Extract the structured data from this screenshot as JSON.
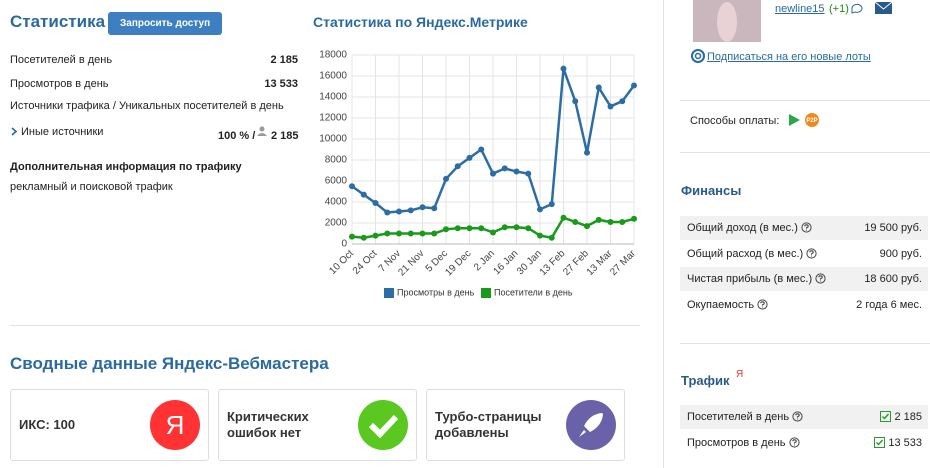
{
  "stats": {
    "title": "Статистика",
    "button": "Запросить доступ",
    "rows": [
      {
        "label": "Посетителей в день",
        "value": "2 185"
      },
      {
        "label": "Просмотров в день",
        "value": "13 533"
      }
    ],
    "sources_header": "Источники трафика / Уникальных посетителей в день",
    "source": {
      "label": "Иные источники",
      "percent": "100 % /",
      "value": "2 185"
    },
    "extra_title": "Дополнительная информация по трафику",
    "extra_text": "рекламный и поисковой трафик"
  },
  "chart_data": {
    "type": "line",
    "title": "Статистика по Яндекс.Метрике",
    "categories": [
      "10 Oct",
      null,
      "24 Oct",
      null,
      "7 Nov",
      null,
      "21 Nov",
      null,
      "5 Dec",
      null,
      "19 Dec",
      null,
      "2 Jan",
      null,
      "16 Jan",
      null,
      "30 Jan",
      null,
      "13 Feb",
      null,
      "27 Feb",
      null,
      "13 Mar",
      null,
      "27 Mar"
    ],
    "series": [
      {
        "name": "Просмотры в день",
        "color": "#2c6ea4",
        "values": [
          5500,
          4700,
          3900,
          3000,
          3100,
          3200,
          3500,
          3400,
          6200,
          7400,
          8200,
          9000,
          6700,
          7200,
          6900,
          6700,
          3300,
          3800,
          16700,
          13600,
          8700,
          14900,
          13100,
          13600,
          15100
        ]
      },
      {
        "name": "Посетители в день",
        "color": "#1a9a1a",
        "values": [
          700,
          600,
          800,
          1000,
          1000,
          1000,
          1000,
          1000,
          1400,
          1500,
          1500,
          1500,
          1100,
          1600,
          1600,
          1500,
          800,
          600,
          2500,
          2100,
          1700,
          2300,
          2100,
          2100,
          2400
        ]
      }
    ],
    "ylim": [
      0,
      18000
    ],
    "yticks": [
      0,
      2000,
      4000,
      6000,
      8000,
      10000,
      12000,
      14000,
      16000,
      18000
    ],
    "grid": true,
    "legend": "bottom"
  },
  "webmaster": {
    "title": "Сводные данные Яндекс-Вебмастера",
    "cards": [
      {
        "text": "ИКС: 100",
        "icon": "Я"
      },
      {
        "text": "Критических ошибок нет"
      },
      {
        "text": "Турбо-страницы добавлены"
      }
    ]
  },
  "seller": {
    "name": "newline15",
    "rating": "(+1)",
    "subscribe": "Подписаться на его новые лоты",
    "payment_label": "Способы оплаты:",
    "payment_icon": "P2P"
  },
  "finance": {
    "title": "Финансы",
    "rows": [
      {
        "label": "Общий доход (в мес.)",
        "value": "19 500 руб."
      },
      {
        "label": "Общий расход (в мес.)",
        "value": "900 руб."
      },
      {
        "label": "Чистая прибыль (в мес.)",
        "value": "18 600 руб."
      },
      {
        "label": "Окупаемость",
        "value": "2 года 6 мес."
      }
    ]
  },
  "traffic": {
    "title": "Трафик",
    "badge": "Я",
    "rows": [
      {
        "label": "Посетителей в день",
        "value": "2 185"
      },
      {
        "label": "Просмотров в день",
        "value": "13 533"
      }
    ]
  }
}
